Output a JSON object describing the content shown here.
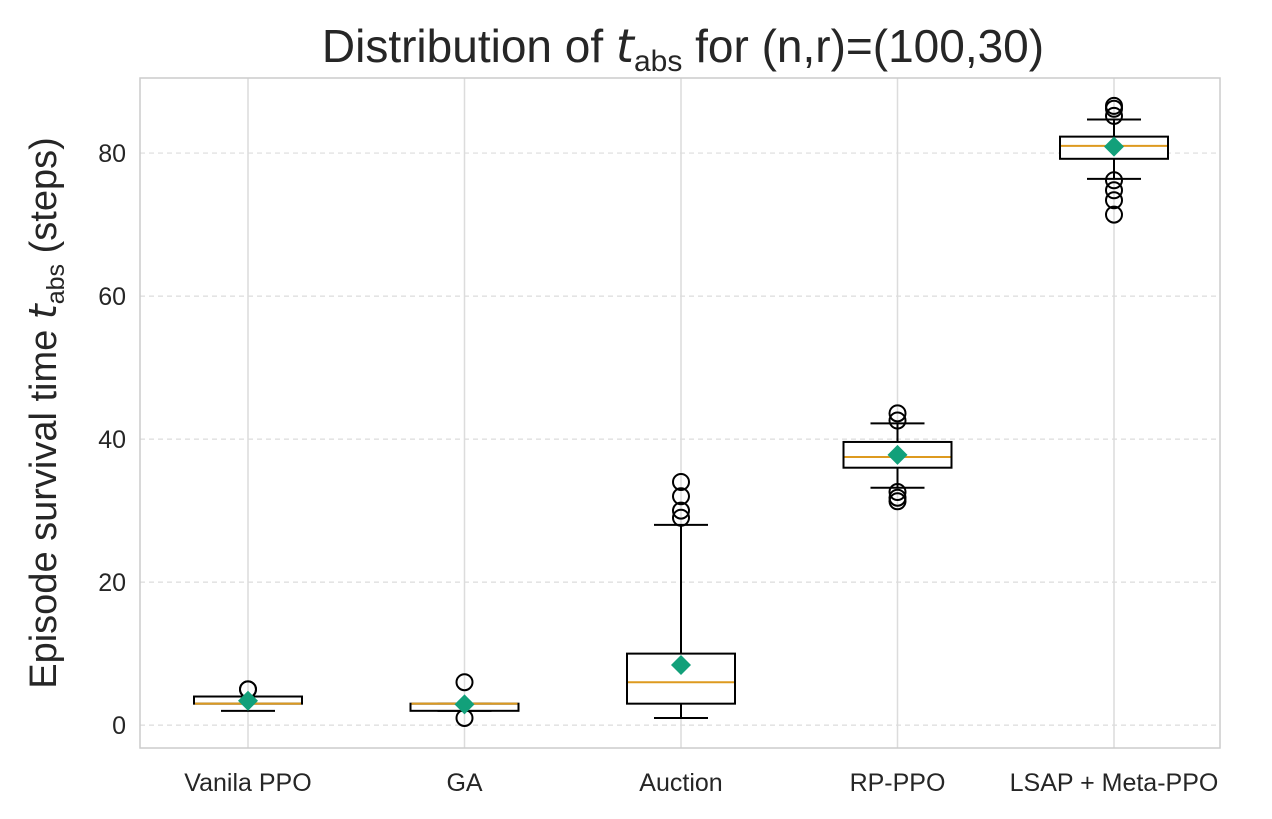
{
  "chart_data": {
    "type": "box",
    "title_prefix": "Distribution of ",
    "title_symbol": "t",
    "title_sub": "abs",
    "title_suffix": " for (n,r)=(100,30)",
    "ylabel_prefix": "Episode survival time ",
    "ylabel_symbol": "t",
    "ylabel_sub": "abs",
    "ylabel_suffix": " (steps)",
    "xlabel": "",
    "ylim": [
      -3.2,
      90.5
    ],
    "yticks": [
      0,
      20,
      40,
      60,
      80
    ],
    "grid": true,
    "categories": [
      "Vanila PPO",
      "GA",
      "Auction",
      "RP-PPO",
      "LSAP + Meta-PPO"
    ],
    "series": [
      {
        "name": "Vanila PPO",
        "whisker_low": 2,
        "q1": 3,
        "median": 3,
        "q3": 4,
        "whisker_high": 4,
        "mean": 3.4,
        "outliers": [
          5,
          5
        ]
      },
      {
        "name": "GA",
        "whisker_low": 2,
        "q1": 2,
        "median": 3,
        "q3": 3,
        "whisker_high": 3,
        "mean": 2.9,
        "outliers": [
          1,
          6
        ]
      },
      {
        "name": "Auction",
        "whisker_low": 1,
        "q1": 3,
        "median": 6,
        "q3": 10,
        "whisker_high": 28,
        "mean": 8.4,
        "outliers": [
          29,
          30,
          32,
          34
        ]
      },
      {
        "name": "RP-PPO",
        "whisker_low": 33.2,
        "q1": 36,
        "median": 37.5,
        "q3": 39.6,
        "whisker_high": 42.2,
        "mean": 37.8,
        "outliers": [
          31.3,
          31.8,
          32.6,
          42.6,
          43.6
        ]
      },
      {
        "name": "LSAP + Meta-PPO",
        "whisker_low": 76.4,
        "q1": 79.2,
        "median": 81,
        "q3": 82.3,
        "whisker_high": 84.7,
        "mean": 80.9,
        "outliers": [
          71.4,
          73.4,
          74.8,
          76.2,
          85.2,
          86.2,
          86.6
        ]
      }
    ],
    "colors": {
      "median": "#dd9a1f",
      "mean": "#12a07a",
      "box": "#000000",
      "grid": "#dcdcdc",
      "spine": "#cccccc",
      "text": "#262626"
    }
  }
}
